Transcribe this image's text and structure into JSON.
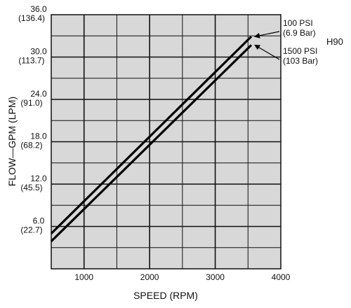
{
  "chart_data": {
    "type": "line",
    "title": "",
    "xlabel": "SPEED (RPM)",
    "ylabel": "FLOW—GPM (LPM)",
    "xlim": [
      500,
      4000
    ],
    "ylim": [
      0,
      36
    ],
    "grid": true,
    "x_ticks": [
      {
        "value": 1000,
        "label": "1000"
      },
      {
        "value": 2000,
        "label": "2000"
      },
      {
        "value": 3000,
        "label": "3000"
      },
      {
        "value": 4000,
        "label": "4000"
      }
    ],
    "y_ticks": [
      {
        "value": 6,
        "label": "6.0",
        "sub": "(22.7)"
      },
      {
        "value": 12,
        "label": "12.0",
        "sub": "(45.5)"
      },
      {
        "value": 18,
        "label": "18.0",
        "sub": "(68.2)"
      },
      {
        "value": 24,
        "label": "24.0",
        "sub": "(91.0)"
      },
      {
        "value": 30,
        "label": "30.0",
        "sub": "(113.7)"
      },
      {
        "value": 36,
        "label": "36.0",
        "sub": "(136.4)"
      }
    ],
    "series": [
      {
        "name": "100 PSI (6.9 Bar)",
        "x": [
          500,
          3550
        ],
        "y": [
          5.0,
          32.9
        ]
      },
      {
        "name": "1500 PSI (103 Bar)",
        "x": [
          500,
          3550
        ],
        "y": [
          3.9,
          31.7
        ]
      }
    ],
    "annotations": [
      {
        "line1": "100 PSI",
        "line2": "(6.9 Bar)"
      },
      {
        "line1": "1500 PSI",
        "line2": "(103 Bar)"
      }
    ],
    "model_label": "H90"
  }
}
